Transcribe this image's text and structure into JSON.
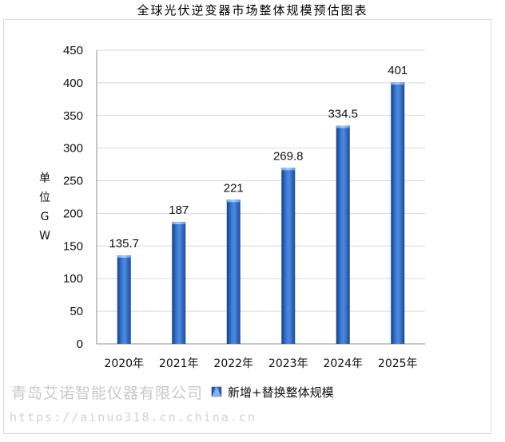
{
  "chart_data": {
    "type": "bar",
    "title": "全球光伏逆变器市场整体规模预估图表",
    "ylabel": "单位GW",
    "categories": [
      "2020年",
      "2021年",
      "2022年",
      "2023年",
      "2024年",
      "2025年"
    ],
    "series": [
      {
        "name": "新增+替换整体规模",
        "values": [
          135.7,
          187,
          221,
          269.8,
          334.5,
          401
        ]
      }
    ],
    "data_labels": [
      "135.7",
      "187",
      "221",
      "269.8",
      "334.5",
      "401"
    ],
    "ylim": [
      0,
      450
    ],
    "yticks": [
      0,
      50,
      100,
      150,
      200,
      250,
      300,
      350,
      400,
      450
    ],
    "grid": true,
    "legend_position": "bottom",
    "bar_color": "#2e6bc4"
  },
  "watermark": {
    "company": "青岛艾诺智能仪器有限公司",
    "url": "https://ainuo318.cn.china.cn"
  }
}
